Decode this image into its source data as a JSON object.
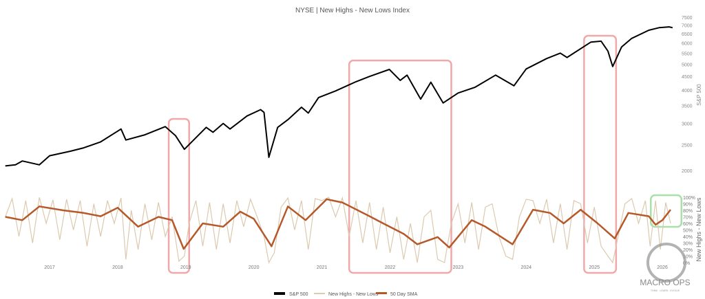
{
  "chart_data": {
    "type": "line",
    "title": "NYSE | New Highs - New Lows Index",
    "x_ticks": [
      "2017",
      "2018",
      "2019",
      "2020",
      "2021",
      "2022",
      "2023",
      "2024",
      "2025",
      "2026"
    ],
    "panels": [
      {
        "ylabel": "S&P 500",
        "scale": "log",
        "ylim": [
          1900,
          7500
        ],
        "y_ticks": [
          "2000",
          "2500",
          "3000",
          "3500",
          "4000",
          "4500",
          "5000",
          "5500",
          "6000",
          "6500",
          "7000",
          "7500"
        ],
        "series": [
          {
            "name": "S&P 500",
            "color": "#000000",
            "points": [
              [
                2016.35,
                2080
              ],
              [
                2016.5,
                2100
              ],
              [
                2016.6,
                2170
              ],
              [
                2016.85,
                2100
              ],
              [
                2017.0,
                2270
              ],
              [
                2017.3,
                2360
              ],
              [
                2017.5,
                2430
              ],
              [
                2017.75,
                2560
              ],
              [
                2018.05,
                2860
              ],
              [
                2018.12,
                2600
              ],
              [
                2018.4,
                2720
              ],
              [
                2018.7,
                2920
              ],
              [
                2018.85,
                2700
              ],
              [
                2018.98,
                2400
              ],
              [
                2019.3,
                2900
              ],
              [
                2019.4,
                2780
              ],
              [
                2019.55,
                3000
              ],
              [
                2019.65,
                2860
              ],
              [
                2019.9,
                3200
              ],
              [
                2020.1,
                3380
              ],
              [
                2020.15,
                3300
              ],
              [
                2020.22,
                2240
              ],
              [
                2020.35,
                2900
              ],
              [
                2020.5,
                3100
              ],
              [
                2020.7,
                3450
              ],
              [
                2020.8,
                3280
              ],
              [
                2020.95,
                3750
              ],
              [
                2021.2,
                3970
              ],
              [
                2021.5,
                4300
              ],
              [
                2021.7,
                4500
              ],
              [
                2021.99,
                4780
              ],
              [
                2022.15,
                4350
              ],
              [
                2022.25,
                4550
              ],
              [
                2022.45,
                3700
              ],
              [
                2022.6,
                4280
              ],
              [
                2022.78,
                3580
              ],
              [
                2023.0,
                3900
              ],
              [
                2023.25,
                4100
              ],
              [
                2023.55,
                4550
              ],
              [
                2023.82,
                4150
              ],
              [
                2024.0,
                4800
              ],
              [
                2024.3,
                5250
              ],
              [
                2024.5,
                5500
              ],
              [
                2024.6,
                5300
              ],
              [
                2024.95,
                6050
              ],
              [
                2025.1,
                6100
              ],
              [
                2025.2,
                5600
              ],
              [
                2025.27,
                4900
              ],
              [
                2025.4,
                5800
              ],
              [
                2025.55,
                6250
              ],
              [
                2025.8,
                6700
              ],
              [
                2025.95,
                6850
              ],
              [
                2026.1,
                6900
              ],
              [
                2026.15,
                6850
              ]
            ]
          }
        ]
      },
      {
        "ylabel": "New Highs - New Lows",
        "ylim": [
          0,
          100
        ],
        "y_unit": "%",
        "y_ticks": [
          "0%",
          "10%",
          "20%",
          "30%",
          "40%",
          "50%",
          "60%",
          "70%",
          "80%",
          "90%",
          "100%"
        ],
        "series": [
          {
            "name": "New Highs - New Lows",
            "color": "#dcc9ae",
            "points": [
              [
                2016.35,
                70
              ],
              [
                2016.45,
                98
              ],
              [
                2016.55,
                40
              ],
              [
                2016.65,
                95
              ],
              [
                2016.75,
                30
              ],
              [
                2016.85,
                100
              ],
              [
                2016.95,
                60
              ],
              [
                2017.05,
                96
              ],
              [
                2017.15,
                35
              ],
              [
                2017.25,
                97
              ],
              [
                2017.35,
                50
              ],
              [
                2017.45,
                95
              ],
              [
                2017.55,
                25
              ],
              [
                2017.65,
                90
              ],
              [
                2017.75,
                40
              ],
              [
                2017.85,
                95
              ],
              [
                2017.95,
                60
              ],
              [
                2018.05,
                99
              ],
              [
                2018.12,
                5
              ],
              [
                2018.2,
                80
              ],
              [
                2018.3,
                20
              ],
              [
                2018.4,
                90
              ],
              [
                2018.5,
                35
              ],
              [
                2018.6,
                92
              ],
              [
                2018.7,
                40
              ],
              [
                2018.8,
                70
              ],
              [
                2018.9,
                2
              ],
              [
                2018.98,
                10
              ],
              [
                2019.05,
                60
              ],
              [
                2019.15,
                95
              ],
              [
                2019.25,
                25
              ],
              [
                2019.35,
                92
              ],
              [
                2019.45,
                20
              ],
              [
                2019.55,
                90
              ],
              [
                2019.65,
                30
              ],
              [
                2019.75,
                95
              ],
              [
                2019.85,
                55
              ],
              [
                2019.95,
                97
              ],
              [
                2020.05,
                70
              ],
              [
                2020.15,
                40
              ],
              [
                2020.22,
                0
              ],
              [
                2020.3,
                15
              ],
              [
                2020.4,
                85
              ],
              [
                2020.5,
                99
              ],
              [
                2020.6,
                50
              ],
              [
                2020.7,
                95
              ],
              [
                2020.8,
                20
              ],
              [
                2020.9,
                98
              ],
              [
                2021.0,
                95
              ],
              [
                2021.1,
                100
              ],
              [
                2021.2,
                70
              ],
              [
                2021.3,
                99
              ],
              [
                2021.4,
                40
              ],
              [
                2021.5,
                95
              ],
              [
                2021.6,
                30
              ],
              [
                2021.7,
                92
              ],
              [
                2021.8,
                20
              ],
              [
                2021.9,
                85
              ],
              [
                2022.0,
                15
              ],
              [
                2022.1,
                70
              ],
              [
                2022.2,
                5
              ],
              [
                2022.3,
                60
              ],
              [
                2022.4,
                0
              ],
              [
                2022.5,
                70
              ],
              [
                2022.6,
                80
              ],
              [
                2022.7,
                5
              ],
              [
                2022.8,
                0
              ],
              [
                2022.9,
                60
              ],
              [
                2023.0,
                90
              ],
              [
                2023.1,
                30
              ],
              [
                2023.2,
                92
              ],
              [
                2023.3,
                20
              ],
              [
                2023.4,
                85
              ],
              [
                2023.5,
                90
              ],
              [
                2023.6,
                40
              ],
              [
                2023.7,
                10
              ],
              [
                2023.8,
                5
              ],
              [
                2023.9,
                70
              ],
              [
                2024.0,
                97
              ],
              [
                2024.1,
                95
              ],
              [
                2024.2,
                60
              ],
              [
                2024.3,
                97
              ],
              [
                2024.4,
                30
              ],
              [
                2024.5,
                90
              ],
              [
                2024.6,
                20
              ],
              [
                2024.7,
                95
              ],
              [
                2024.8,
                90
              ],
              [
                2024.9,
                30
              ],
              [
                2025.0,
                85
              ],
              [
                2025.1,
                25
              ],
              [
                2025.2,
                10
              ],
              [
                2025.27,
                0
              ],
              [
                2025.35,
                40
              ],
              [
                2025.45,
                90
              ],
              [
                2025.55,
                98
              ],
              [
                2025.65,
                60
              ],
              [
                2025.75,
                95
              ],
              [
                2025.82,
                25
              ],
              [
                2025.9,
                95
              ],
              [
                2025.97,
                20
              ],
              [
                2026.05,
                92
              ],
              [
                2026.12,
                60
              ]
            ]
          },
          {
            "name": "50 Day SMA",
            "color": "#b5582a",
            "points": [
              [
                2016.35,
                70
              ],
              [
                2016.6,
                65
              ],
              [
                2016.85,
                86
              ],
              [
                2017.2,
                80
              ],
              [
                2017.5,
                76
              ],
              [
                2017.75,
                71
              ],
              [
                2018.0,
                84
              ],
              [
                2018.3,
                55
              ],
              [
                2018.6,
                70
              ],
              [
                2018.8,
                65
              ],
              [
                2018.97,
                21
              ],
              [
                2019.25,
                60
              ],
              [
                2019.55,
                55
              ],
              [
                2019.8,
                78
              ],
              [
                2020.0,
                67
              ],
              [
                2020.26,
                25
              ],
              [
                2020.5,
                86
              ],
              [
                2020.76,
                65
              ],
              [
                2021.07,
                97
              ],
              [
                2021.3,
                92
              ],
              [
                2021.7,
                71
              ],
              [
                2021.9,
                60
              ],
              [
                2022.2,
                44
              ],
              [
                2022.4,
                28
              ],
              [
                2022.7,
                39
              ],
              [
                2022.87,
                23
              ],
              [
                2023.2,
                65
              ],
              [
                2023.4,
                55
              ],
              [
                2023.8,
                28
              ],
              [
                2024.1,
                81
              ],
              [
                2024.35,
                76
              ],
              [
                2024.55,
                60
              ],
              [
                2024.8,
                81
              ],
              [
                2025.05,
                60
              ],
              [
                2025.3,
                37
              ],
              [
                2025.5,
                76
              ],
              [
                2025.8,
                71
              ],
              [
                2025.9,
                58
              ],
              [
                2026.0,
                65
              ],
              [
                2026.12,
                81
              ]
            ]
          }
        ]
      }
    ],
    "highlights": [
      {
        "color": "#f0a8a8",
        "x_range": [
          2018.75,
          2019.05
        ],
        "panels": "both"
      },
      {
        "color": "#f0a8a8",
        "x_range": [
          2021.4,
          2022.9
        ],
        "panels": "both"
      },
      {
        "color": "#f0a8a8",
        "x_range": [
          2024.85,
          2025.32
        ],
        "panels": "both"
      },
      {
        "color": "#a8e0a8",
        "x_range": [
          2025.83,
          2026.28
        ],
        "panels": "lower"
      }
    ],
    "legend": {
      "placement": "bottom",
      "entries": [
        "S&P 500",
        "New Highs - New Lows",
        "50 Day SMA"
      ]
    },
    "grid": false
  },
  "logo": {
    "text": "MACRO OPS",
    "tagline": "THINK · LEARN · EVOLVE"
  }
}
